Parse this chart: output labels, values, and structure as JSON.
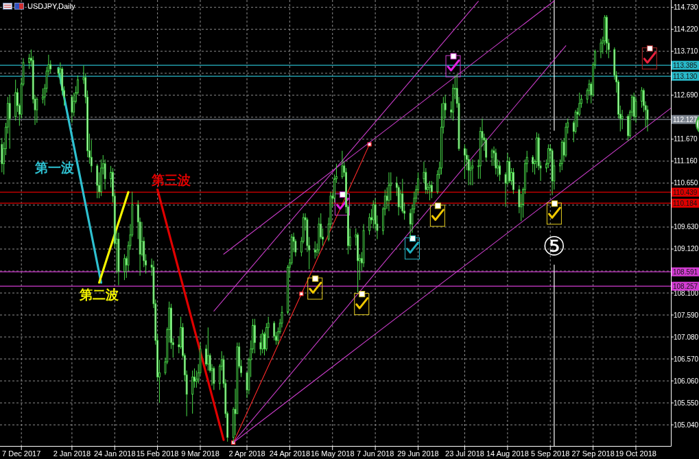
{
  "chart_data": {
    "type": "candlestick",
    "title": "USDJPY,Daily",
    "color": "#4ade4a",
    "x": [
      "2017-11-27",
      "2017-11-28",
      "2017-11-29",
      "2017-11-30",
      "2017-12-01",
      "2017-12-04",
      "2017-12-05",
      "2017-12-06",
      "2017-12-07",
      "2017-12-08",
      "2017-12-11",
      "2017-12-12",
      "2017-12-13",
      "2017-12-14",
      "2017-12-15",
      "2017-12-18",
      "2017-12-19",
      "2017-12-20",
      "2017-12-21",
      "2017-12-22",
      "2017-12-26",
      "2017-12-27",
      "2017-12-28",
      "2017-12-29",
      "2018-01-02",
      "2018-01-03",
      "2018-01-04",
      "2018-01-05",
      "2018-01-08",
      "2018-01-09",
      "2018-01-10",
      "2018-01-11",
      "2018-01-12",
      "2018-01-15",
      "2018-01-16",
      "2018-01-17",
      "2018-01-18",
      "2018-01-19",
      "2018-01-22",
      "2018-01-23",
      "2018-01-24",
      "2018-01-25",
      "2018-01-26",
      "2018-01-29",
      "2018-01-30",
      "2018-01-31",
      "2018-02-01",
      "2018-02-02",
      "2018-02-05",
      "2018-02-06",
      "2018-02-07",
      "2018-02-08",
      "2018-02-09",
      "2018-02-12",
      "2018-02-13",
      "2018-02-14",
      "2018-02-15",
      "2018-02-16",
      "2018-02-19",
      "2018-02-20",
      "2018-02-21",
      "2018-02-22",
      "2018-02-23",
      "2018-02-26",
      "2018-02-27",
      "2018-02-28",
      "2018-03-01",
      "2018-03-02",
      "2018-03-05",
      "2018-03-06",
      "2018-03-07",
      "2018-03-08",
      "2018-03-09",
      "2018-03-12",
      "2018-03-13",
      "2018-03-14",
      "2018-03-15",
      "2018-03-16",
      "2018-03-19",
      "2018-03-20",
      "2018-03-21",
      "2018-03-22",
      "2018-03-23",
      "2018-03-26",
      "2018-03-27",
      "2018-03-28",
      "2018-03-29",
      "2018-03-30",
      "2018-04-02",
      "2018-04-03",
      "2018-04-04",
      "2018-04-05",
      "2018-04-06",
      "2018-04-09",
      "2018-04-10",
      "2018-04-11",
      "2018-04-12",
      "2018-04-13",
      "2018-04-16",
      "2018-04-17",
      "2018-04-18",
      "2018-04-19",
      "2018-04-20",
      "2018-04-23",
      "2018-04-24",
      "2018-04-25",
      "2018-04-26",
      "2018-04-27",
      "2018-04-30",
      "2018-05-01",
      "2018-05-02",
      "2018-05-03",
      "2018-05-04",
      "2018-05-07",
      "2018-05-08",
      "2018-05-09",
      "2018-05-10",
      "2018-05-11",
      "2018-05-14",
      "2018-05-15",
      "2018-05-16",
      "2018-05-17",
      "2018-05-18",
      "2018-05-21",
      "2018-05-22",
      "2018-05-23",
      "2018-05-24",
      "2018-05-25",
      "2018-05-28",
      "2018-05-29",
      "2018-05-30",
      "2018-05-31",
      "2018-06-01",
      "2018-06-04",
      "2018-06-05",
      "2018-06-06",
      "2018-06-07",
      "2018-06-08",
      "2018-06-11",
      "2018-06-12",
      "2018-06-13",
      "2018-06-14",
      "2018-06-15",
      "2018-06-18",
      "2018-06-19",
      "2018-06-20",
      "2018-06-21",
      "2018-06-22",
      "2018-06-25",
      "2018-06-26",
      "2018-06-27",
      "2018-06-28",
      "2018-06-29",
      "2018-07-02",
      "2018-07-03",
      "2018-07-04",
      "2018-07-05",
      "2018-07-06",
      "2018-07-09",
      "2018-07-10",
      "2018-07-11",
      "2018-07-12",
      "2018-07-13",
      "2018-07-16",
      "2018-07-17",
      "2018-07-18",
      "2018-07-19",
      "2018-07-20",
      "2018-07-23",
      "2018-07-24",
      "2018-07-25",
      "2018-07-26",
      "2018-07-27",
      "2018-07-30",
      "2018-07-31",
      "2018-08-01",
      "2018-08-02",
      "2018-08-03",
      "2018-08-06",
      "2018-08-07",
      "2018-08-08",
      "2018-08-09",
      "2018-08-10",
      "2018-08-13",
      "2018-08-14",
      "2018-08-15",
      "2018-08-16",
      "2018-08-17",
      "2018-08-20",
      "2018-08-21",
      "2018-08-22",
      "2018-08-23",
      "2018-08-24",
      "2018-08-27",
      "2018-08-28",
      "2018-08-29",
      "2018-08-30",
      "2018-08-31",
      "2018-09-03",
      "2018-09-04",
      "2018-09-05",
      "2018-09-06",
      "2018-09-07",
      "2018-09-10",
      "2018-09-11",
      "2018-09-12",
      "2018-09-13",
      "2018-09-14",
      "2018-09-17",
      "2018-09-18",
      "2018-09-19",
      "2018-09-20",
      "2018-09-21",
      "2018-09-24",
      "2018-09-25",
      "2018-09-26",
      "2018-09-27",
      "2018-09-28",
      "2018-10-01",
      "2018-10-02",
      "2018-10-03",
      "2018-10-04",
      "2018-10-05",
      "2018-10-08",
      "2018-10-09",
      "2018-10-10",
      "2018-10-11",
      "2018-10-12",
      "2018-10-15",
      "2018-10-16",
      "2018-10-17",
      "2018-10-18",
      "2018-10-19",
      "2018-10-22",
      "2018-10-23",
      "2018-10-24",
      "2018-10-25"
    ],
    "ohlc": [
      [
        111.55,
        111.7,
        110.9,
        111.1
      ],
      [
        111.1,
        111.6,
        110.85,
        111.45
      ],
      [
        111.45,
        112.05,
        111.3,
        111.95
      ],
      [
        111.95,
        112.65,
        111.8,
        112.5
      ],
      [
        112.5,
        112.7,
        111.45,
        112.15
      ],
      [
        112.2,
        113.05,
        112.1,
        112.75
      ],
      [
        112.75,
        112.85,
        112.3,
        112.45
      ],
      [
        112.45,
        112.5,
        111.98,
        112.25
      ],
      [
        112.25,
        113.1,
        112.15,
        112.95
      ],
      [
        112.95,
        113.55,
        112.9,
        113.45
      ],
      [
        113.45,
        113.65,
        113.3,
        113.55
      ],
      [
        113.55,
        113.75,
        113.35,
        113.5
      ],
      [
        113.5,
        113.6,
        112.5,
        112.6
      ],
      [
        112.6,
        112.7,
        112.0,
        112.35
      ],
      [
        112.35,
        112.65,
        112.05,
        112.6
      ],
      [
        112.6,
        112.85,
        112.5,
        112.65
      ],
      [
        112.65,
        112.95,
        112.45,
        112.85
      ],
      [
        112.85,
        113.35,
        112.75,
        113.25
      ],
      [
        113.25,
        113.63,
        113.15,
        113.4
      ],
      [
        113.4,
        113.5,
        113.2,
        113.3
      ],
      [
        113.3,
        113.35,
        113.1,
        113.2
      ],
      [
        113.2,
        113.45,
        112.95,
        113.3
      ],
      [
        113.3,
        113.35,
        112.7,
        112.8
      ],
      [
        112.8,
        112.9,
        112.45,
        112.65
      ],
      [
        112.65,
        112.7,
        112.05,
        112.3
      ],
      [
        112.3,
        112.75,
        112.2,
        112.55
      ],
      [
        112.55,
        112.9,
        112.5,
        112.75
      ],
      [
        112.75,
        113.15,
        112.7,
        113.05
      ],
      [
        113.05,
        113.38,
        112.95,
        113.1
      ],
      [
        113.1,
        113.2,
        112.5,
        112.65
      ],
      [
        112.65,
        112.8,
        111.25,
        111.4
      ],
      [
        111.4,
        111.8,
        111.1,
        111.25
      ],
      [
        111.25,
        111.65,
        110.9,
        111.05
      ],
      [
        111.05,
        111.1,
        110.3,
        110.6
      ],
      [
        110.6,
        110.9,
        110.3,
        110.45
      ],
      [
        110.45,
        111.2,
        110.35,
        111.0
      ],
      [
        111.0,
        111.3,
        110.85,
        111.1
      ],
      [
        111.1,
        111.2,
        110.5,
        110.75
      ],
      [
        110.75,
        111.05,
        110.55,
        110.9
      ],
      [
        110.9,
        111.0,
        110.2,
        110.35
      ],
      [
        110.35,
        110.45,
        109.15,
        109.25
      ],
      [
        109.25,
        109.55,
        108.55,
        109.35
      ],
      [
        109.35,
        109.5,
        108.28,
        108.6
      ],
      [
        108.6,
        109.0,
        108.4,
        108.9
      ],
      [
        108.9,
        108.95,
        108.45,
        108.75
      ],
      [
        108.75,
        109.3,
        108.6,
        109.2
      ],
      [
        109.2,
        109.7,
        109.1,
        109.45
      ],
      [
        109.45,
        110.45,
        109.4,
        110.15
      ],
      [
        110.15,
        110.25,
        109.35,
        109.75
      ],
      [
        109.75,
        109.85,
        108.5,
        109.0
      ],
      [
        109.0,
        109.75,
        108.95,
        109.3
      ],
      [
        109.3,
        109.4,
        108.7,
        108.85
      ],
      [
        108.85,
        109.0,
        108.55,
        108.75
      ],
      [
        108.75,
        108.9,
        108.5,
        108.7
      ],
      [
        108.7,
        108.85,
        107.75,
        107.85
      ],
      [
        107.85,
        107.95,
        106.9,
        107.0
      ],
      [
        107.0,
        107.15,
        106.05,
        106.15
      ],
      [
        106.15,
        106.55,
        105.55,
        106.25
      ],
      [
        106.25,
        106.6,
        106.2,
        106.5
      ],
      [
        106.5,
        107.3,
        106.45,
        107.25
      ],
      [
        107.25,
        107.9,
        106.95,
        107.75
      ],
      [
        107.75,
        107.85,
        106.8,
        106.95
      ],
      [
        106.95,
        107.05,
        106.6,
        106.9
      ],
      [
        106.9,
        107.1,
        106.7,
        106.85
      ],
      [
        106.85,
        107.55,
        106.8,
        107.3
      ],
      [
        107.3,
        107.4,
        106.6,
        106.65
      ],
      [
        106.65,
        106.7,
        106.05,
        106.2
      ],
      [
        106.2,
        106.3,
        105.24,
        105.75
      ],
      [
        105.75,
        106.3,
        105.3,
        106.15
      ],
      [
        106.15,
        106.35,
        105.9,
        106.05
      ],
      [
        106.05,
        106.3,
        105.9,
        106.1
      ],
      [
        106.1,
        106.45,
        106.0,
        106.25
      ],
      [
        106.25,
        106.95,
        106.2,
        106.8
      ],
      [
        106.8,
        106.9,
        106.4,
        106.45
      ],
      [
        106.45,
        107.3,
        106.3,
        106.65
      ],
      [
        106.65,
        106.7,
        106.25,
        106.3
      ],
      [
        106.3,
        106.45,
        105.95,
        106.35
      ],
      [
        106.35,
        106.4,
        105.85,
        106.0
      ],
      [
        106.0,
        106.45,
        105.85,
        106.4
      ],
      [
        106.4,
        106.75,
        106.3,
        106.55
      ],
      [
        106.55,
        106.65,
        105.9,
        106.0
      ],
      [
        106.0,
        106.1,
        105.2,
        105.3
      ],
      [
        105.3,
        105.35,
        104.65,
        104.75
      ],
      [
        104.75,
        105.45,
        104.63,
        105.4
      ],
      [
        105.4,
        105.88,
        104.8,
        105.3
      ],
      [
        105.3,
        106.95,
        105.3,
        106.85
      ],
      [
        106.85,
        106.95,
        106.35,
        106.4
      ],
      [
        106.4,
        106.55,
        106.15,
        106.25
      ],
      [
        106.25,
        106.25,
        105.66,
        105.85
      ],
      [
        105.85,
        106.6,
        105.75,
        106.55
      ],
      [
        106.55,
        107.0,
        106.15,
        106.8
      ],
      [
        106.8,
        107.5,
        106.7,
        107.35
      ],
      [
        107.35,
        107.5,
        106.7,
        106.95
      ],
      [
        106.95,
        107.15,
        106.65,
        106.8
      ],
      [
        106.8,
        107.25,
        106.7,
        107.15
      ],
      [
        107.15,
        107.2,
        106.65,
        106.8
      ],
      [
        106.8,
        107.4,
        106.75,
        107.3
      ],
      [
        107.3,
        107.55,
        107.05,
        107.4
      ],
      [
        107.4,
        107.45,
        107.0,
        107.1
      ],
      [
        107.1,
        107.2,
        106.9,
        107.0
      ],
      [
        107.0,
        107.3,
        106.9,
        107.2
      ],
      [
        107.2,
        107.5,
        107.15,
        107.4
      ],
      [
        107.4,
        107.8,
        107.3,
        107.65
      ],
      [
        107.65,
        108.75,
        107.6,
        108.7
      ],
      [
        108.7,
        108.9,
        108.45,
        108.8
      ],
      [
        108.8,
        109.47,
        108.75,
        109.4
      ],
      [
        109.4,
        109.5,
        109.05,
        109.3
      ],
      [
        109.3,
        109.35,
        108.95,
        109.05
      ],
      [
        109.05,
        109.4,
        108.95,
        109.3
      ],
      [
        109.3,
        109.95,
        109.25,
        109.85
      ],
      [
        109.85,
        109.95,
        109.55,
        109.8
      ],
      [
        109.8,
        109.85,
        109.05,
        109.2
      ],
      [
        109.2,
        109.4,
        108.65,
        109.1
      ],
      [
        109.1,
        109.3,
        108.9,
        109.05
      ],
      [
        109.05,
        109.25,
        108.95,
        109.1
      ],
      [
        109.1,
        109.85,
        109.0,
        109.7
      ],
      [
        109.7,
        109.95,
        109.35,
        109.4
      ],
      [
        109.4,
        109.6,
        109.2,
        109.35
      ],
      [
        109.35,
        109.85,
        109.3,
        109.7
      ],
      [
        109.7,
        110.45,
        109.6,
        110.35
      ],
      [
        110.35,
        110.45,
        110.1,
        110.3
      ],
      [
        110.3,
        110.85,
        110.2,
        110.75
      ],
      [
        110.75,
        111.1,
        110.65,
        110.8
      ],
      [
        110.8,
        111.4,
        110.75,
        111.05
      ],
      [
        111.05,
        111.15,
        110.8,
        110.9
      ],
      [
        110.9,
        111.0,
        109.95,
        110.1
      ],
      [
        110.1,
        110.15,
        109.0,
        109.2
      ],
      [
        109.2,
        109.6,
        109.1,
        109.4
      ],
      [
        109.4,
        109.6,
        109.2,
        109.45
      ],
      [
        109.45,
        109.5,
        108.11,
        108.85
      ],
      [
        108.85,
        109.0,
        108.4,
        108.9
      ],
      [
        108.9,
        109.05,
        108.6,
        108.8
      ],
      [
        108.8,
        109.7,
        108.7,
        109.55
      ],
      [
        109.55,
        109.95,
        109.45,
        109.85
      ],
      [
        109.85,
        110.05,
        109.7,
        109.8
      ],
      [
        109.8,
        110.25,
        109.6,
        110.15
      ],
      [
        110.15,
        110.3,
        109.55,
        109.7
      ],
      [
        109.7,
        109.9,
        109.35,
        109.55
      ],
      [
        109.55,
        110.1,
        109.45,
        110.05
      ],
      [
        110.05,
        110.5,
        109.9,
        110.35
      ],
      [
        110.35,
        110.55,
        110.05,
        110.25
      ],
      [
        110.25,
        110.9,
        110.0,
        110.6
      ],
      [
        110.6,
        110.9,
        110.25,
        110.65
      ],
      [
        110.65,
        110.8,
        110.35,
        110.55
      ],
      [
        110.55,
        110.6,
        109.9,
        110.1
      ],
      [
        110.1,
        110.5,
        110.05,
        110.4
      ],
      [
        110.4,
        110.75,
        109.95,
        110.0
      ],
      [
        110.0,
        110.2,
        109.8,
        109.95
      ],
      [
        109.95,
        110.05,
        109.37,
        109.7
      ],
      [
        109.7,
        110.15,
        109.5,
        110.05
      ],
      [
        110.05,
        110.45,
        109.95,
        110.3
      ],
      [
        110.3,
        110.6,
        110.2,
        110.5
      ],
      [
        110.5,
        110.9,
        110.4,
        110.75
      ],
      [
        110.75,
        111.15,
        110.65,
        110.9
      ],
      [
        110.9,
        111.0,
        110.4,
        110.5
      ],
      [
        110.5,
        110.65,
        110.4,
        110.55
      ],
      [
        110.55,
        110.7,
        110.25,
        110.6
      ],
      [
        110.6,
        110.7,
        110.3,
        110.45
      ],
      [
        110.45,
        110.95,
        110.4,
        110.85
      ],
      [
        110.85,
        111.15,
        110.75,
        111.0
      ],
      [
        111.0,
        112.5,
        110.85,
        111.95
      ],
      [
        111.95,
        112.65,
        111.8,
        112.5
      ],
      [
        112.5,
        112.7,
        112.15,
        112.35
      ],
      [
        112.35,
        112.55,
        112.15,
        112.3
      ],
      [
        112.3,
        112.95,
        112.1,
        112.85
      ],
      [
        112.85,
        113.15,
        112.6,
        112.85
      ],
      [
        112.85,
        113.18,
        112.4,
        112.5
      ],
      [
        112.5,
        112.65,
        111.4,
        111.45
      ],
      [
        111.45,
        111.55,
        110.75,
        111.3
      ],
      [
        111.3,
        111.45,
        110.95,
        111.2
      ],
      [
        111.2,
        111.3,
        110.6,
        110.95
      ],
      [
        110.95,
        111.15,
        110.6,
        111.0
      ],
      [
        111.0,
        111.2,
        110.6,
        111.05
      ],
      [
        111.05,
        111.2,
        110.75,
        111.05
      ],
      [
        111.05,
        111.95,
        110.75,
        111.85
      ],
      [
        111.85,
        112.15,
        111.5,
        111.7
      ],
      [
        111.7,
        111.8,
        111.4,
        111.65
      ],
      [
        111.65,
        111.7,
        111.15,
        111.25
      ],
      [
        111.25,
        111.45,
        111.05,
        111.4
      ],
      [
        111.4,
        111.5,
        111.05,
        111.35
      ],
      [
        111.35,
        111.45,
        110.85,
        111.0
      ],
      [
        111.0,
        111.2,
        110.8,
        111.05
      ],
      [
        111.05,
        111.15,
        110.7,
        110.85
      ],
      [
        110.85,
        110.9,
        110.1,
        110.65
      ],
      [
        110.65,
        111.35,
        110.6,
        111.15
      ],
      [
        111.15,
        111.25,
        110.65,
        110.7
      ],
      [
        110.7,
        111.0,
        110.6,
        110.9
      ],
      [
        110.9,
        111.0,
        110.4,
        110.5
      ],
      [
        110.5,
        110.6,
        109.95,
        110.1
      ],
      [
        110.1,
        110.4,
        109.77,
        110.15
      ],
      [
        110.15,
        110.55,
        109.85,
        110.5
      ],
      [
        110.5,
        111.2,
        110.4,
        111.1
      ],
      [
        111.1,
        111.4,
        110.9,
        111.25
      ],
      [
        111.25,
        111.3,
        110.9,
        111.1
      ],
      [
        111.1,
        111.2,
        110.85,
        111.15
      ],
      [
        111.15,
        111.83,
        111.0,
        111.7
      ],
      [
        111.7,
        111.8,
        110.95,
        111.05
      ],
      [
        111.05,
        111.15,
        110.7,
        111.0
      ],
      [
        111.0,
        111.2,
        110.9,
        111.1
      ],
      [
        111.1,
        111.55,
        111.0,
        111.45
      ],
      [
        111.45,
        111.55,
        111.15,
        111.4
      ],
      [
        111.4,
        111.45,
        110.37,
        110.7
      ],
      [
        110.7,
        111.2,
        110.5,
        111.05
      ],
      [
        111.05,
        111.2,
        110.9,
        111.1
      ],
      [
        111.1,
        111.65,
        110.95,
        111.6
      ],
      [
        111.6,
        111.7,
        111.15,
        111.3
      ],
      [
        111.3,
        112.05,
        111.25,
        111.95
      ],
      [
        111.95,
        112.15,
        111.8,
        112.05
      ],
      [
        112.05,
        112.1,
        111.6,
        111.85
      ],
      [
        111.85,
        112.35,
        111.8,
        112.3
      ],
      [
        112.3,
        112.4,
        111.95,
        112.25
      ],
      [
        112.25,
        112.75,
        112.2,
        112.5
      ],
      [
        112.5,
        112.7,
        112.4,
        112.6
      ],
      [
        112.6,
        112.85,
        112.5,
        112.8
      ],
      [
        112.8,
        113.05,
        112.7,
        112.95
      ],
      [
        112.95,
        113.0,
        112.5,
        112.7
      ],
      [
        112.7,
        113.45,
        112.65,
        113.4
      ],
      [
        113.4,
        113.75,
        113.3,
        113.7
      ],
      [
        113.7,
        114.0,
        113.55,
        113.9
      ],
      [
        113.9,
        114.05,
        113.65,
        113.95
      ],
      [
        113.95,
        114.55,
        113.85,
        114.5
      ],
      [
        114.5,
        114.55,
        113.65,
        113.9
      ],
      [
        113.9,
        114.0,
        113.55,
        113.75
      ],
      [
        113.75,
        113.8,
        113.05,
        113.15
      ],
      [
        113.15,
        113.25,
        112.75,
        113.0
      ],
      [
        113.0,
        113.05,
        112.15,
        112.25
      ],
      [
        112.25,
        112.45,
        111.85,
        112.15
      ],
      [
        112.15,
        112.35,
        111.9,
        112.2
      ],
      [
        112.2,
        112.25,
        111.63,
        111.75
      ],
      [
        111.75,
        112.35,
        111.7,
        112.3
      ],
      [
        112.3,
        112.7,
        112.2,
        112.65
      ],
      [
        112.65,
        112.75,
        112.1,
        112.2
      ],
      [
        112.2,
        112.65,
        112.05,
        112.55
      ],
      [
        112.55,
        112.88,
        112.4,
        112.8
      ],
      [
        112.8,
        112.85,
        112.3,
        112.45
      ],
      [
        112.45,
        112.55,
        111.95,
        112.35
      ],
      [
        112.35,
        112.45,
        111.85,
        112.13
      ]
    ],
    "series": [
      {
        "name": "第一波",
        "type": "line",
        "color": "#2ec0d0",
        "x": [
          "2017-12-26",
          "2018-01-17"
        ],
        "values": [
          113.32,
          108.34
        ]
      },
      {
        "name": "第二波",
        "type": "line",
        "color": "#f5f500",
        "x": [
          "2018-01-16",
          "2018-01-31"
        ],
        "values": [
          108.34,
          110.44
        ]
      },
      {
        "name": "第三波",
        "type": "line",
        "color": "#e00000",
        "x": [
          "2018-02-15",
          "2018-03-21"
        ],
        "values": [
          110.5,
          104.69
        ]
      },
      {
        "type": "line",
        "color": "#ff2a2a",
        "marker": "square",
        "x": [
          "2018-03-26",
          "2018-04-30",
          "2018-06-04"
        ],
        "values": [
          104.63,
          108.08,
          111.55
        ]
      },
      {
        "type": "line",
        "color": "#c83cc8",
        "x": [
          "2018-03-26",
          "2018-11-06"
        ],
        "values": [
          104.63,
          112.39
        ]
      },
      {
        "type": "line",
        "color": "#c83cc8",
        "x": [
          "2018-03-26",
          "2018-09-13"
        ],
        "values": [
          104.63,
          113.84
        ]
      },
      {
        "type": "line",
        "color": "#c83cc8",
        "x": [
          "2018-03-16",
          "2018-07-30"
        ],
        "values": [
          107.68,
          114.87
        ]
      },
      {
        "type": "line",
        "color": "#c83cc8",
        "x": [
          "2018-03-21",
          "2018-09-07"
        ],
        "values": [
          109.0,
          114.88
        ]
      }
    ],
    "xlim": [
      "2017-11-26",
      "2018-11-06"
    ],
    "ylim": [
      104.55,
      114.9
    ],
    "xticks": [
      {
        "value": "2017-12-07",
        "label": "7 Dec 2017"
      },
      {
        "value": "2018-01-02",
        "label": "2 Jan 2018"
      },
      {
        "value": "2018-01-24",
        "label": "24 Jan 2018"
      },
      {
        "value": "2018-02-15",
        "label": "15 Feb 2018"
      },
      {
        "value": "2018-03-09",
        "label": "9 Mar 2018"
      },
      {
        "value": "2018-04-02",
        "label": "2 Apr 2018"
      },
      {
        "value": "2018-04-24",
        "label": "24 Apr 2018"
      },
      {
        "value": "2018-05-16",
        "label": "16 May 2018"
      },
      {
        "value": "2018-06-07",
        "label": "7 Jun 2018"
      },
      {
        "value": "2018-06-29",
        "label": "29 Jun 2018"
      },
      {
        "value": "2018-07-23",
        "label": "23 Jul 2018"
      },
      {
        "value": "2018-08-14",
        "label": "14 Aug 2018"
      },
      {
        "value": "2018-09-05",
        "label": "5 Sep 2018"
      },
      {
        "value": "2018-09-27",
        "label": "27 Sep 2018"
      },
      {
        "value": "2018-10-19",
        "label": "19 Oct 2018"
      }
    ],
    "yticks": [
      {
        "value": 114.73,
        "label": "114.730"
      },
      {
        "value": 114.22,
        "label": "114.220"
      },
      {
        "value": 113.71,
        "label": "113.710"
      },
      {
        "value": 113.2,
        "label": null
      },
      {
        "value": 112.69,
        "label": "112.690"
      },
      {
        "value": 112.18,
        "label": null
      },
      {
        "value": 111.67,
        "label": "111.670"
      },
      {
        "value": 111.16,
        "label": "111.160"
      },
      {
        "value": 110.65,
        "label": "110.650"
      },
      {
        "value": 110.14,
        "label": null
      },
      {
        "value": 109.63,
        "label": "109.630"
      },
      {
        "value": 109.12,
        "label": "109.120"
      },
      {
        "value": 108.61,
        "label": null
      },
      {
        "value": 108.1,
        "label": "108.100"
      },
      {
        "value": 107.59,
        "label": "107.590"
      },
      {
        "value": 107.08,
        "label": "107.080"
      },
      {
        "value": 106.57,
        "label": "106.570"
      },
      {
        "value": 106.06,
        "label": "106.060"
      },
      {
        "value": 105.55,
        "label": "105.550"
      },
      {
        "value": 105.04,
        "label": "105.040"
      }
    ],
    "ref_lines": [
      {
        "axis": "y",
        "value": 113.385,
        "label": "113.385",
        "color": "#28b8c8"
      },
      {
        "axis": "y",
        "value": 113.13,
        "label": "113.130",
        "color": "#28b8c8"
      },
      {
        "axis": "y",
        "value": 112.127,
        "label": "112.127",
        "color": "#7d8590"
      },
      {
        "axis": "y",
        "value": 110.439,
        "label": "110.439",
        "color": "#e00000"
      },
      {
        "axis": "y",
        "value": 110.184,
        "label": "110.184",
        "color": "#e00000"
      },
      {
        "axis": "y",
        "value": 108.591,
        "label": "108.591",
        "color": "#d23cd2"
      },
      {
        "axis": "y",
        "value": 108.257,
        "label": "108.257",
        "color": "#d23cd2"
      },
      {
        "axis": "x",
        "value": "2018-09-07",
        "label": "⑤",
        "color": "#ffffff"
      }
    ],
    "grid": true,
    "legend": false
  }
}
